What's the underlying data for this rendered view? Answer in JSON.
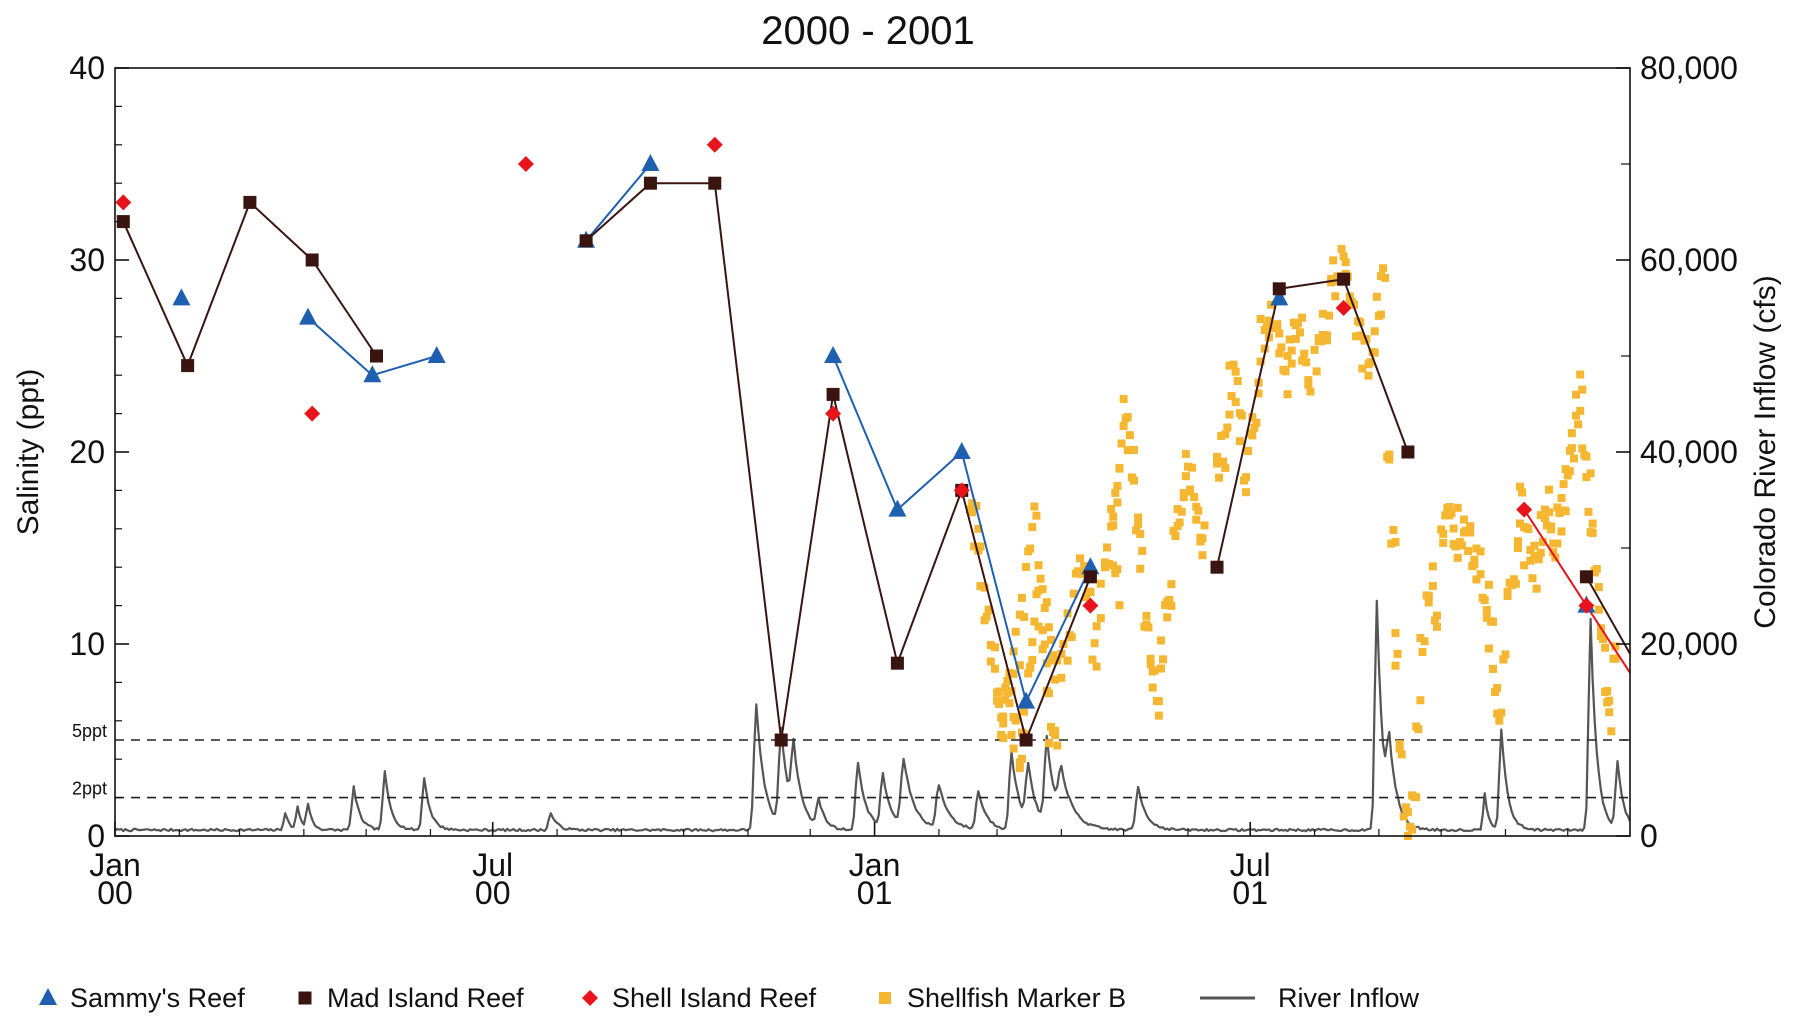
{
  "chart_data": {
    "type": "line",
    "title": "2000 - 2001",
    "ylabel": "Salinity (ppt)",
    "y2label": "Colorado River Inflow (cfs)",
    "xlim": [
      "2000-01-01",
      "2001-12-31"
    ],
    "ylim": [
      0,
      40
    ],
    "y2lim": [
      0,
      80000
    ],
    "grid": false,
    "legend_position": "bottom",
    "x_ticks": [
      {
        "date": "2000-01-01",
        "month": "Jan",
        "year": "00"
      },
      {
        "date": "2000-07-01",
        "month": "Jul",
        "year": "00"
      },
      {
        "date": "2001-01-01",
        "month": "Jan",
        "year": "01"
      },
      {
        "date": "2001-07-01",
        "month": "Jul",
        "year": "01"
      }
    ],
    "y_ticks": [
      "0",
      "10",
      "20",
      "30",
      "40"
    ],
    "y_tick_values": [
      0,
      10,
      20,
      30,
      40
    ],
    "y2_ticks": [
      "0",
      "20,000",
      "40,000",
      "60,000",
      "80,000"
    ],
    "y2_tick_values": [
      0,
      20000,
      40000,
      60000,
      80000
    ],
    "reference_lines": [
      {
        "label": "5ppt",
        "y": 5
      },
      {
        "label": "2ppt",
        "y": 2
      }
    ],
    "series": [
      {
        "name": "Sammy's Reef",
        "color": "#1f5fb0",
        "marker": "triangle",
        "points": [
          {
            "x": "2000-02-02",
            "y": 28,
            "seg": 0
          },
          {
            "x": "2000-04-03",
            "y": 27,
            "seg": 1
          },
          {
            "x": "2000-05-04",
            "y": 24,
            "seg": 1
          },
          {
            "x": "2000-06-04",
            "y": 25,
            "seg": 1
          },
          {
            "x": "2000-08-15",
            "y": 31,
            "seg": 2
          },
          {
            "x": "2000-09-15",
            "y": 35,
            "seg": 2
          },
          {
            "x": "2000-12-12",
            "y": 25,
            "seg": 3
          },
          {
            "x": "2001-01-12",
            "y": 17,
            "seg": 3
          },
          {
            "x": "2001-02-12",
            "y": 20,
            "seg": 3
          },
          {
            "x": "2001-03-15",
            "y": 7,
            "seg": 3
          },
          {
            "x": "2001-04-15",
            "y": 14,
            "seg": 3
          },
          {
            "x": "2001-07-15",
            "y": 28,
            "seg": 4
          },
          {
            "x": "2001-12-10",
            "y": 12,
            "seg": 5
          }
        ]
      },
      {
        "name": "Mad Island Reef",
        "color": "#3a1510",
        "marker": "square",
        "points": [
          {
            "x": "2000-01-05",
            "y": 32,
            "seg": 0
          },
          {
            "x": "2000-02-05",
            "y": 24.5,
            "seg": 0
          },
          {
            "x": "2000-03-06",
            "y": 33,
            "seg": 0
          },
          {
            "x": "2000-04-05",
            "y": 30,
            "seg": 0
          },
          {
            "x": "2000-05-06",
            "y": 25,
            "seg": 0
          },
          {
            "x": "2000-08-15",
            "y": 31,
            "seg": 1
          },
          {
            "x": "2000-09-15",
            "y": 34,
            "seg": 1
          },
          {
            "x": "2000-10-16",
            "y": 34,
            "seg": 1
          },
          {
            "x": "2000-11-17",
            "y": 5,
            "seg": 1
          },
          {
            "x": "2000-12-12",
            "y": 23,
            "seg": 1
          },
          {
            "x": "2001-01-12",
            "y": 9,
            "seg": 1
          },
          {
            "x": "2001-02-12",
            "y": 18,
            "seg": 1
          },
          {
            "x": "2001-03-15",
            "y": 5,
            "seg": 1
          },
          {
            "x": "2001-04-15",
            "y": 13.5,
            "seg": 1
          },
          {
            "x": "2001-06-15",
            "y": 14,
            "seg": 2
          },
          {
            "x": "2001-07-15",
            "y": 28.5,
            "seg": 2
          },
          {
            "x": "2001-08-15",
            "y": 29,
            "seg": 2
          },
          {
            "x": "2001-09-15",
            "y": 20,
            "seg": 2
          },
          {
            "x": "2001-12-10",
            "y": 13.5,
            "seg": 3
          },
          {
            "x": "2001-12-31",
            "y": 9.5,
            "seg": 3
          }
        ]
      },
      {
        "name": "Shell Island Reef",
        "color": "#e8141b",
        "marker": "diamond",
        "points": [
          {
            "x": "2000-01-05",
            "y": 33
          },
          {
            "x": "2000-04-05",
            "y": 22
          },
          {
            "x": "2000-07-17",
            "y": 35
          },
          {
            "x": "2000-10-16",
            "y": 36
          },
          {
            "x": "2000-12-12",
            "y": 22
          },
          {
            "x": "2001-02-12",
            "y": 18
          },
          {
            "x": "2001-04-15",
            "y": 12
          },
          {
            "x": "2001-08-15",
            "y": 27.5
          },
          {
            "x": "2001-11-10",
            "y": 17,
            "seg": 0
          },
          {
            "x": "2001-12-10",
            "y": 12,
            "seg": 0
          },
          {
            "x": "2001-12-31",
            "y": 8.5,
            "seg": 0
          }
        ]
      },
      {
        "name": "Shellfish Marker B",
        "color": "#f5b731",
        "marker": "small-square",
        "clusters": [
          {
            "start": "2001-02-16",
            "end": "2001-03-31",
            "values": [
              18,
              16,
              14,
              12,
              11,
              9,
              7,
              6,
              8,
              6,
              5,
              4,
              6,
              8,
              10,
              12,
              10,
              8,
              6,
              5
            ]
          },
          {
            "start": "2001-03-01",
            "end": "2001-04-30",
            "values": [
              6,
              7,
              8,
              10,
              12,
              14,
              16,
              14,
              12,
              10,
              8,
              9,
              11,
              13,
              14,
              12,
              10,
              12,
              14,
              15,
              13
            ]
          },
          {
            "start": "2001-04-25",
            "end": "2001-06-10",
            "values": [
              16,
              18,
              20,
              22,
              21,
              19,
              17,
              15,
              12,
              10,
              8,
              7,
              9,
              11,
              13,
              15,
              17,
              18,
              19,
              18,
              17,
              16,
              15
            ]
          },
          {
            "start": "2001-06-15",
            "end": "2001-07-31",
            "values": [
              19,
              20,
              22,
              24,
              23,
              21,
              19,
              20,
              22,
              24,
              26,
              27,
              27.5,
              26,
              25,
              24,
              25,
              26,
              27,
              25,
              24
            ]
          },
          {
            "start": "2001-08-01",
            "end": "2001-09-05",
            "values": [
              25,
              26,
              27,
              28,
              29,
              30,
              29,
              28,
              27,
              26,
              25,
              24,
              26,
              28,
              29
            ]
          },
          {
            "start": "2001-09-05",
            "end": "2001-09-30",
            "values": [
              20,
              15,
              10,
              5,
              1,
              0,
              2,
              6,
              10,
              12,
              13,
              12
            ]
          },
          {
            "start": "2001-10-01",
            "end": "2001-11-15",
            "values": [
              16,
              17,
              16,
              15,
              16,
              17,
              16,
              15,
              14,
              13,
              12,
              10,
              8,
              6,
              9,
              12,
              14,
              16,
              17,
              15,
              14
            ]
          },
          {
            "start": "2001-11-15",
            "end": "2001-12-25",
            "values": [
              14,
              15,
              16,
              17,
              16,
              15,
              16,
              17,
              18,
              19,
              20,
              22,
              23,
              20,
              18,
              16,
              14,
              12,
              10,
              8,
              6,
              9
            ]
          }
        ]
      },
      {
        "name": "River Inflow",
        "color": "#555555",
        "axis": "right",
        "flow_base_cfs": 500,
        "flow_events": [
          {
            "date": "2000-03-23",
            "peak": 1800,
            "width_days": 2
          },
          {
            "date": "2000-03-29",
            "peak": 2400,
            "width_days": 2
          },
          {
            "date": "2000-04-03",
            "peak": 2600,
            "width_days": 2
          },
          {
            "date": "2000-04-25",
            "peak": 4500,
            "width_days": 3
          },
          {
            "date": "2000-05-10",
            "peak": 6000,
            "width_days": 3
          },
          {
            "date": "2000-05-29",
            "peak": 5500,
            "width_days": 3
          },
          {
            "date": "2000-07-29",
            "peak": 1800,
            "width_days": 3
          },
          {
            "date": "2000-11-05",
            "peak": 13000,
            "width_days": 4
          },
          {
            "date": "2000-11-17",
            "peak": 10000,
            "width_days": 4
          },
          {
            "date": "2000-11-23",
            "peak": 7000,
            "width_days": 4
          },
          {
            "date": "2000-12-05",
            "peak": 3000,
            "width_days": 3
          },
          {
            "date": "2000-12-24",
            "peak": 7000,
            "width_days": 4
          },
          {
            "date": "2001-01-05",
            "peak": 5500,
            "width_days": 4
          },
          {
            "date": "2001-01-15",
            "peak": 7000,
            "width_days": 5
          },
          {
            "date": "2001-02-01",
            "peak": 4500,
            "width_days": 5
          },
          {
            "date": "2001-02-20",
            "peak": 4000,
            "width_days": 4
          },
          {
            "date": "2001-03-08",
            "peak": 8000,
            "width_days": 4
          },
          {
            "date": "2001-03-16",
            "peak": 6000,
            "width_days": 4
          },
          {
            "date": "2001-03-25",
            "peak": 9000,
            "width_days": 4
          },
          {
            "date": "2001-04-01",
            "peak": 5000,
            "width_days": 6
          },
          {
            "date": "2001-05-08",
            "peak": 4500,
            "width_days": 4
          },
          {
            "date": "2001-08-31",
            "peak": 24000,
            "width_days": 3
          },
          {
            "date": "2001-09-06",
            "peak": 7000,
            "width_days": 4
          },
          {
            "date": "2001-10-22",
            "peak": 3800,
            "width_days": 2
          },
          {
            "date": "2001-10-30",
            "peak": 10500,
            "width_days": 3
          },
          {
            "date": "2001-12-12",
            "peak": 22000,
            "width_days": 3
          },
          {
            "date": "2001-12-25",
            "peak": 7000,
            "width_days": 3
          }
        ]
      }
    ]
  }
}
